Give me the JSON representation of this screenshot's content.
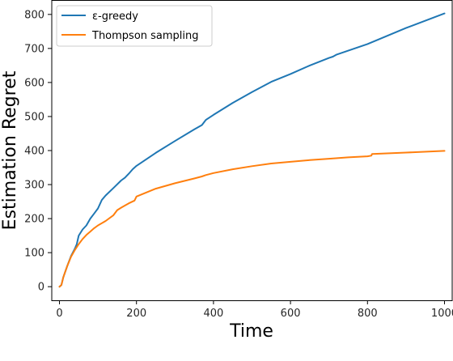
{
  "chart_data": {
    "type": "line",
    "xlabel": "Time",
    "ylabel": "Estimation Regret",
    "xlim": [
      -20,
      1020
    ],
    "ylim": [
      -40,
      840
    ],
    "xticks": [
      0,
      200,
      400,
      600,
      800,
      1000
    ],
    "yticks": [
      0,
      100,
      200,
      300,
      400,
      500,
      600,
      700,
      800
    ],
    "grid": false,
    "legend_position": "top-left",
    "series": [
      {
        "name": "ε-greedy",
        "color": "#1f77b4",
        "x": [
          0,
          5,
          10,
          20,
          30,
          40,
          45,
          50,
          60,
          70,
          80,
          90,
          100,
          110,
          120,
          140,
          160,
          170,
          180,
          190,
          200,
          250,
          300,
          350,
          370,
          380,
          400,
          450,
          500,
          550,
          600,
          650,
          700,
          710,
          720,
          800,
          900,
          1000
        ],
        "y": [
          0,
          5,
          28,
          60,
          90,
          112,
          125,
          150,
          168,
          180,
          200,
          215,
          230,
          255,
          268,
          290,
          312,
          320,
          332,
          345,
          355,
          393,
          428,
          462,
          475,
          490,
          505,
          540,
          572,
          602,
          625,
          650,
          672,
          676,
          682,
          713,
          760,
          803
        ]
      },
      {
        "name": "Thompson sampling",
        "color": "#ff7f0e",
        "x": [
          0,
          5,
          10,
          20,
          30,
          40,
          50,
          60,
          70,
          80,
          90,
          100,
          120,
          140,
          150,
          160,
          180,
          195,
          200,
          250,
          300,
          350,
          370,
          380,
          400,
          450,
          500,
          550,
          600,
          650,
          700,
          750,
          800,
          810,
          812,
          900,
          1000
        ],
        "y": [
          0,
          5,
          28,
          60,
          88,
          108,
          125,
          140,
          152,
          162,
          172,
          180,
          193,
          210,
          225,
          232,
          245,
          253,
          265,
          288,
          304,
          318,
          324,
          328,
          334,
          345,
          354,
          362,
          367,
          372,
          376,
          380,
          383,
          385,
          390,
          394,
          399
        ]
      }
    ]
  }
}
